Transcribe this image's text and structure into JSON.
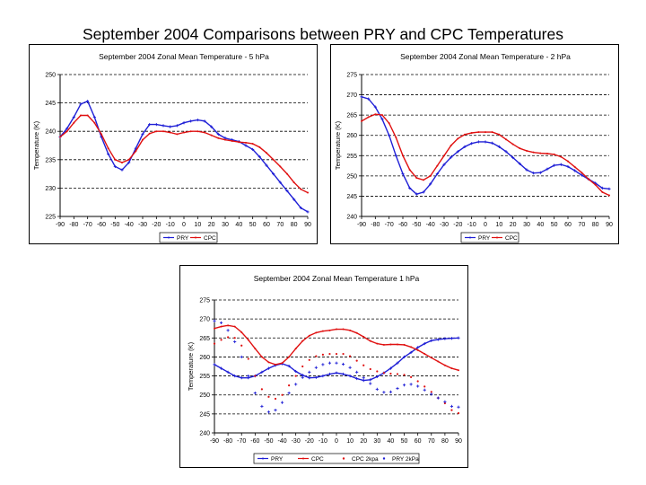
{
  "page": {
    "title": "September 2004 Comparisons between PRY and CPC Temperatures"
  },
  "colors": {
    "pry": "#1f1fd6",
    "cpc": "#e01010",
    "grid": "#000000"
  },
  "chart_data": [
    {
      "type": "line",
      "title": "September 2004 Zonal Mean Temperature - 5 hPa",
      "ylabel": "Temperature (K)",
      "xlabel": "",
      "x": [
        -90,
        -85,
        -80,
        -75,
        -70,
        -65,
        -60,
        -55,
        -50,
        -45,
        -40,
        -35,
        -30,
        -25,
        -20,
        -15,
        -10,
        -5,
        0,
        5,
        10,
        15,
        20,
        25,
        30,
        35,
        40,
        45,
        50,
        55,
        60,
        65,
        70,
        75,
        80,
        85,
        90
      ],
      "xticks": [
        -90,
        -80,
        -70,
        -60,
        -50,
        -40,
        -30,
        -20,
        -10,
        0,
        10,
        20,
        30,
        40,
        50,
        60,
        70,
        80,
        90
      ],
      "yticks": [
        225,
        230,
        235,
        240,
        245,
        250
      ],
      "ylim": [
        225,
        250
      ],
      "xlim": [
        -90,
        90
      ],
      "grid": "horizontal dashed",
      "legend_position": "bottom",
      "series": [
        {
          "name": "PRY",
          "color": "#1f1fd6",
          "marker": "plus",
          "values": [
            239,
            240.5,
            242.5,
            244.8,
            245.3,
            242.5,
            239,
            236,
            233.8,
            233.2,
            234.5,
            237,
            239.5,
            241.2,
            241.2,
            241,
            240.8,
            241,
            241.5,
            241.8,
            242,
            241.8,
            240.8,
            239.5,
            238.8,
            238.5,
            238.2,
            237.5,
            236.8,
            235.5,
            234,
            232.5,
            231,
            229.5,
            228,
            226.5,
            225.8
          ]
        },
        {
          "name": "CPC",
          "color": "#e01010",
          "marker": "dot",
          "values": [
            239,
            240,
            241.5,
            242.8,
            242.8,
            241.5,
            239.5,
            237,
            235,
            234.5,
            235,
            236.5,
            238.5,
            239.6,
            240,
            240,
            239.8,
            239.5,
            239.8,
            240,
            240,
            239.8,
            239.3,
            238.8,
            238.5,
            238.3,
            238.1,
            238,
            237.8,
            237.2,
            236.2,
            235,
            233.8,
            232.5,
            231,
            229.8,
            229.2
          ]
        }
      ]
    },
    {
      "type": "line",
      "title": "September 2004 Zonal Mean Temperature - 2 hPa",
      "ylabel": "Temperature (K)",
      "xlabel": "",
      "x": [
        -90,
        -85,
        -80,
        -75,
        -70,
        -65,
        -60,
        -55,
        -50,
        -45,
        -40,
        -35,
        -30,
        -25,
        -20,
        -15,
        -10,
        -5,
        0,
        5,
        10,
        15,
        20,
        25,
        30,
        35,
        40,
        45,
        50,
        55,
        60,
        65,
        70,
        75,
        80,
        85,
        90
      ],
      "xticks": [
        -90,
        -80,
        -70,
        -60,
        -50,
        -40,
        -30,
        -20,
        -10,
        0,
        10,
        20,
        30,
        40,
        50,
        60,
        70,
        80,
        90
      ],
      "yticks": [
        240,
        245,
        250,
        255,
        260,
        265,
        270,
        275
      ],
      "ylim": [
        240,
        275
      ],
      "xlim": [
        -90,
        90
      ],
      "grid": "horizontal dashed",
      "legend_position": "bottom",
      "series": [
        {
          "name": "PRY",
          "color": "#1f1fd6",
          "marker": "plus",
          "values": [
            269.5,
            269,
            267,
            264,
            260,
            255,
            250.5,
            247,
            245.5,
            246,
            248,
            250.5,
            252.8,
            254.6,
            256,
            257.2,
            258,
            258.4,
            258.4,
            258.1,
            257.2,
            256,
            254.5,
            253,
            251.5,
            250.7,
            250.8,
            251.7,
            252.6,
            252.8,
            252.3,
            251.3,
            250.2,
            249.2,
            248.2,
            247,
            246.8
          ]
        },
        {
          "name": "CPC",
          "color": "#e01010",
          "marker": "dot",
          "values": [
            263.5,
            264.5,
            265.2,
            265,
            263,
            259.5,
            255,
            251.5,
            249.5,
            249,
            250,
            252.5,
            255,
            257.5,
            259.2,
            260.2,
            260.6,
            260.8,
            260.8,
            260.8,
            260.2,
            259,
            257.8,
            256.8,
            256.2,
            255.8,
            255.6,
            255.5,
            255.3,
            254.7,
            253.6,
            252.2,
            250.8,
            249.2,
            247.8,
            246,
            245.2
          ]
        }
      ]
    },
    {
      "type": "line",
      "title": "September 2004 Zonal Mean Temperature 1 hPa",
      "ylabel": "Temperature (K)",
      "xlabel": "",
      "x": [
        -90,
        -85,
        -80,
        -75,
        -70,
        -65,
        -60,
        -55,
        -50,
        -45,
        -40,
        -35,
        -30,
        -25,
        -20,
        -15,
        -10,
        -5,
        0,
        5,
        10,
        15,
        20,
        25,
        30,
        35,
        40,
        45,
        50,
        55,
        60,
        65,
        70,
        75,
        80,
        85,
        90
      ],
      "xticks": [
        -90,
        -80,
        -70,
        -60,
        -50,
        -40,
        -30,
        -20,
        -10,
        0,
        10,
        20,
        30,
        40,
        50,
        60,
        70,
        80,
        90
      ],
      "yticks": [
        240,
        245,
        250,
        255,
        260,
        265,
        270,
        275
      ],
      "ylim": [
        240,
        275
      ],
      "xlim": [
        -90,
        90
      ],
      "grid": "horizontal dashed",
      "legend_position": "bottom",
      "series": [
        {
          "name": "PRY",
          "color": "#1f1fd6",
          "marker": "plus",
          "style": "solid",
          "values": [
            258,
            257,
            256,
            255,
            254.5,
            254.5,
            255,
            256,
            257,
            257.8,
            258.2,
            257.6,
            256.2,
            255.2,
            254.5,
            254.6,
            255,
            255.5,
            255.8,
            255.5,
            255,
            254.3,
            253.8,
            254,
            254.8,
            255.8,
            257,
            258.4,
            260,
            261.2,
            262.5,
            263.5,
            264.3,
            264.6,
            264.8,
            264.9,
            265
          ]
        },
        {
          "name": "CPC",
          "color": "#e01010",
          "marker": "dot",
          "style": "solid",
          "values": [
            267.5,
            268,
            268.3,
            268,
            266.5,
            264.5,
            262.2,
            260,
            258.6,
            258,
            258.4,
            260,
            262.2,
            264.2,
            265.6,
            266.4,
            266.8,
            267,
            267.3,
            267.3,
            267,
            266.3,
            265.3,
            264.2,
            263.5,
            263.2,
            263.3,
            263.3,
            263.2,
            262.6,
            261.8,
            260.8,
            259.8,
            258.8,
            257.8,
            257,
            256.5
          ]
        },
        {
          "name": "CPC 2kpa",
          "color": "#e01010",
          "marker": "dot",
          "style": "markers",
          "values": [
            263.5,
            264.5,
            265.2,
            265,
            263,
            259.5,
            255,
            251.5,
            249.5,
            249,
            250,
            252.5,
            255,
            257.5,
            259.2,
            260.2,
            260.6,
            260.8,
            260.8,
            260.8,
            260.2,
            259,
            257.8,
            256.8,
            256.2,
            255.8,
            255.6,
            255.5,
            255.3,
            254.7,
            253.6,
            252.2,
            250.8,
            249.2,
            247.8,
            246,
            245.2
          ]
        },
        {
          "name": "PRY 2kPa",
          "color": "#1f1fd6",
          "marker": "plus",
          "style": "markers",
          "values": [
            269.5,
            269,
            267,
            264,
            260,
            255,
            250.5,
            247,
            245.5,
            246,
            248,
            250.5,
            252.8,
            254.6,
            256,
            257.2,
            258,
            258.4,
            258.4,
            258.1,
            257.2,
            256,
            254.5,
            253,
            251.5,
            250.7,
            250.8,
            251.7,
            252.6,
            252.8,
            252.3,
            251.3,
            250.2,
            249.2,
            248.2,
            247,
            246.8
          ]
        }
      ]
    }
  ]
}
